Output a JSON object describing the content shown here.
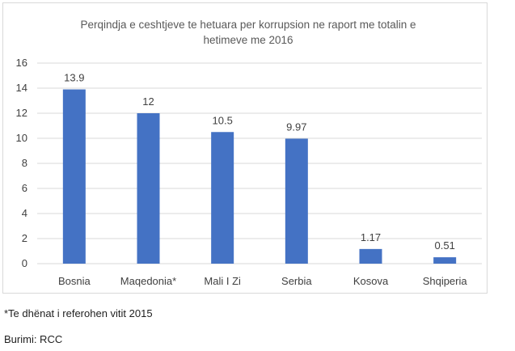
{
  "chart_data": {
    "type": "bar",
    "title_lines": [
      "Perqindja e ceshtjeve te hetuara per korrupsion ne raport me totalin e",
      "hetimeve me 2016"
    ],
    "categories": [
      "Bosnia",
      "Maqedonia*",
      "Mali I Zi",
      "Serbia",
      "Kosova",
      "Shqiperia"
    ],
    "values": [
      13.9,
      12,
      10.5,
      9.97,
      1.17,
      0.51
    ],
    "data_labels": [
      "13.9",
      "12",
      "10.5",
      "9.97",
      "1.17",
      "0.51"
    ],
    "ylim": [
      0,
      16
    ],
    "yticks": [
      0,
      2,
      4,
      6,
      8,
      10,
      12,
      14,
      16
    ],
    "xlabel": "",
    "ylabel": "",
    "grid": true,
    "bar_color": "#4472c4",
    "grid_color": "#d9d9d9"
  },
  "footnote": "*Te dhënat i referohen vitit 2015",
  "source": "Burimi: RCC"
}
